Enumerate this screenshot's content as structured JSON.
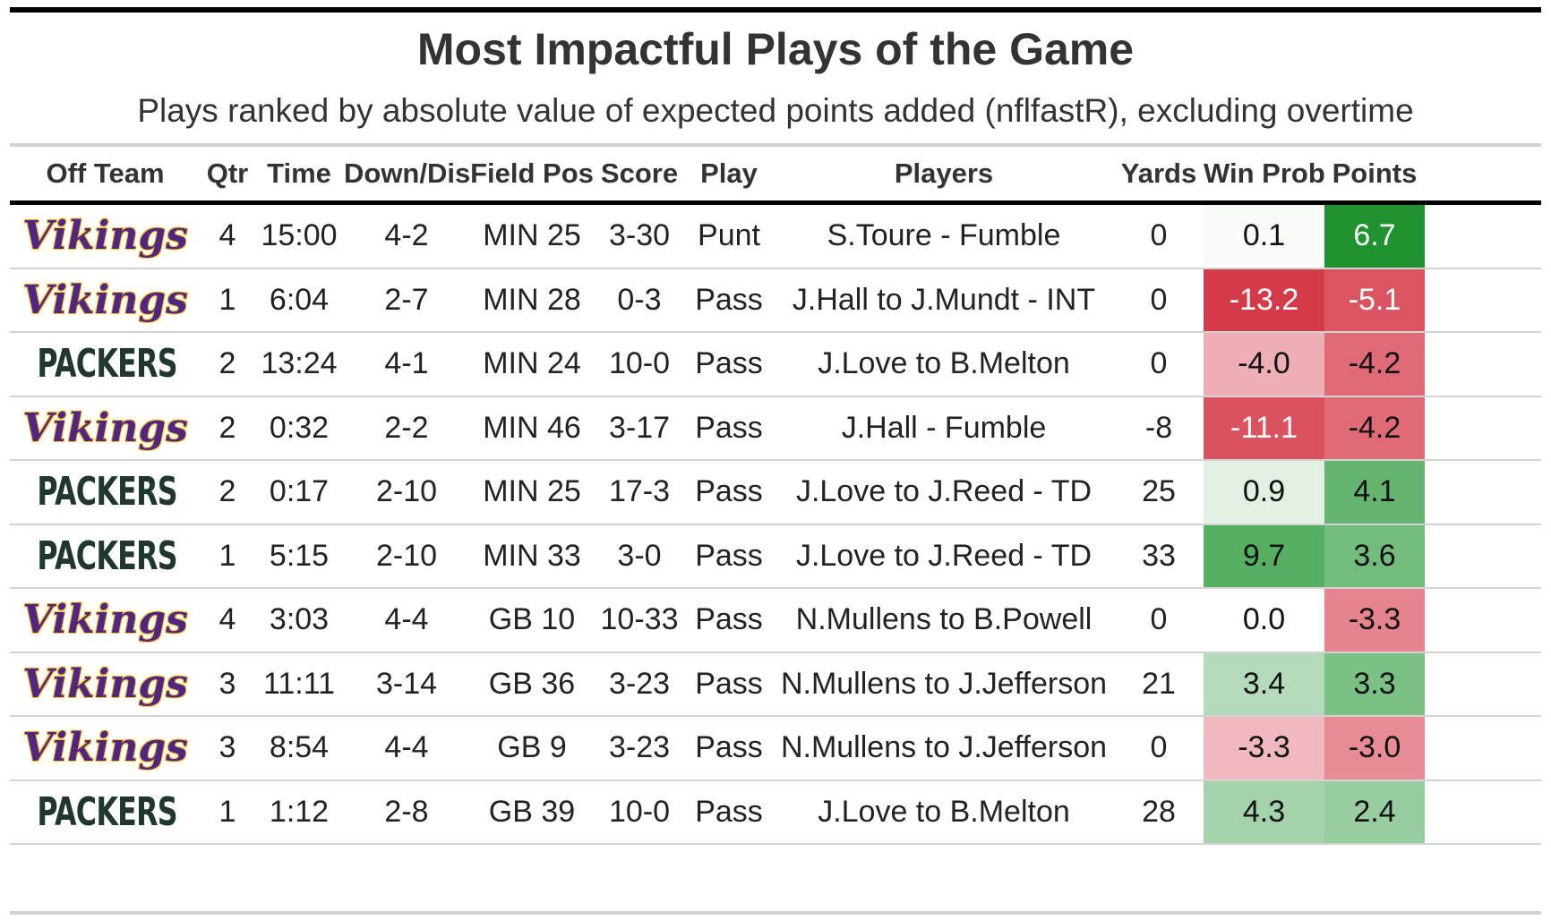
{
  "title": "Most Impactful Plays of the Game",
  "subtitle": "Plays ranked by absolute value of expected points added (nflfastR), excluding overtime",
  "headers": [
    "Off Team",
    "Qtr",
    "Time",
    "Down/Dis",
    "Field Pos",
    "Score",
    "Play",
    "Players",
    "Yards",
    "Win Prob",
    "Points"
  ],
  "logos": {
    "vikings": {
      "text": "Vikings",
      "primary": "#4F2683",
      "secondary": "#FFC62F"
    },
    "packers": {
      "text": "PACKERS",
      "primary": "#203731"
    }
  },
  "colors": {
    "negative_strong": "#cf1b2d",
    "positive_strong": "#0b8a1e",
    "neutral": "#ffffff"
  },
  "chart_data": {
    "type": "table",
    "title": "Most Impactful Plays of the Game",
    "subtitle": "Plays ranked by absolute value of expected points added (nflfastR), excluding overtime",
    "columns": [
      "Off Team",
      "Qtr",
      "Time",
      "Down/Dis",
      "Field Pos",
      "Score",
      "Play",
      "Players",
      "Yards",
      "Win Prob",
      "Points"
    ],
    "rows": [
      {
        "team": "vikings",
        "qtr": "4",
        "time": "15:00",
        "down": "4-2",
        "field": "MIN 25",
        "score": "3-30",
        "play": "Punt",
        "players": "S.Toure - Fumble",
        "yards": "0",
        "win_prob": "0.1",
        "points": "6.7"
      },
      {
        "team": "vikings",
        "qtr": "1",
        "time": "6:04",
        "down": "2-7",
        "field": "MIN 28",
        "score": "0-3",
        "play": "Pass",
        "players": "J.Hall to J.Mundt - INT",
        "yards": "0",
        "win_prob": "-13.2",
        "points": "-5.1"
      },
      {
        "team": "packers",
        "qtr": "2",
        "time": "13:24",
        "down": "4-1",
        "field": "MIN 24",
        "score": "10-0",
        "play": "Pass",
        "players": "J.Love to B.Melton",
        "yards": "0",
        "win_prob": "-4.0",
        "points": "-4.2"
      },
      {
        "team": "vikings",
        "qtr": "2",
        "time": "0:32",
        "down": "2-2",
        "field": "MIN 46",
        "score": "3-17",
        "play": "Pass",
        "players": "J.Hall - Fumble",
        "yards": "-8",
        "win_prob": "-11.1",
        "points": "-4.2"
      },
      {
        "team": "packers",
        "qtr": "2",
        "time": "0:17",
        "down": "2-10",
        "field": "MIN 25",
        "score": "17-3",
        "play": "Pass",
        "players": "J.Love to J.Reed - TD",
        "yards": "25",
        "win_prob": "0.9",
        "points": "4.1"
      },
      {
        "team": "packers",
        "qtr": "1",
        "time": "5:15",
        "down": "2-10",
        "field": "MIN 33",
        "score": "3-0",
        "play": "Pass",
        "players": "J.Love to J.Reed - TD",
        "yards": "33",
        "win_prob": "9.7",
        "points": "3.6"
      },
      {
        "team": "vikings",
        "qtr": "4",
        "time": "3:03",
        "down": "4-4",
        "field": "GB 10",
        "score": "10-33",
        "play": "Pass",
        "players": "N.Mullens to B.Powell",
        "yards": "0",
        "win_prob": "0.0",
        "points": "-3.3"
      },
      {
        "team": "vikings",
        "qtr": "3",
        "time": "11:11",
        "down": "3-14",
        "field": "GB 36",
        "score": "3-23",
        "play": "Pass",
        "players": "N.Mullens to J.Jefferson",
        "yards": "21",
        "win_prob": "3.4",
        "points": "3.3"
      },
      {
        "team": "vikings",
        "qtr": "3",
        "time": "8:54",
        "down": "4-4",
        "field": "GB 9",
        "score": "3-23",
        "play": "Pass",
        "players": "N.Mullens to J.Jefferson",
        "yards": "0",
        "win_prob": "-3.3",
        "points": "-3.0"
      },
      {
        "team": "packers",
        "qtr": "1",
        "time": "1:12",
        "down": "2-8",
        "field": "GB 39",
        "score": "10-0",
        "play": "Pass",
        "players": "J.Love to B.Melton",
        "yards": "28",
        "win_prob": "4.3",
        "points": "2.4"
      }
    ]
  }
}
